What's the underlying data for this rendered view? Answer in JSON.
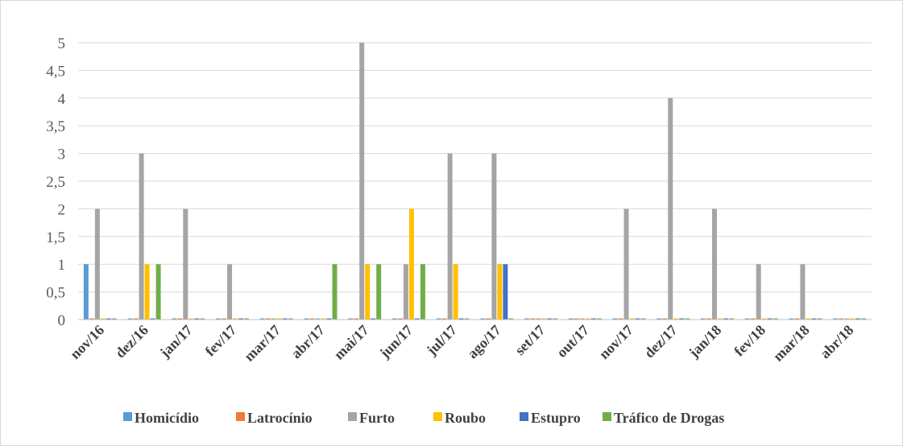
{
  "chart_data": {
    "type": "bar",
    "title": "",
    "xlabel": "",
    "ylabel": "",
    "ylim": [
      0,
      5
    ],
    "yticks": [
      "0",
      "0,5",
      "1",
      "1,5",
      "2",
      "2,5",
      "3",
      "3,5",
      "4",
      "4,5",
      "5"
    ],
    "grid": true,
    "legend_position": "bottom",
    "categories": [
      "nov/16",
      "dez/16",
      "jan/17",
      "fev/17",
      "mar/17",
      "abr/17",
      "mai/17",
      "jun/17",
      "jul/17",
      "ago/17",
      "set/17",
      "out/17",
      "nov/17",
      "dez/17",
      "jan/18",
      "fev/18",
      "mar/18",
      "abr/18"
    ],
    "series": [
      {
        "name": "Homicídio",
        "color": "#5b9bd5",
        "values": [
          1,
          0,
          0,
          0,
          0,
          0,
          0,
          0,
          0,
          0,
          0,
          0,
          0,
          0,
          0,
          0,
          0,
          0
        ]
      },
      {
        "name": "Latrocínio",
        "color": "#ed7d31",
        "values": [
          0,
          0,
          0,
          0,
          0,
          0,
          0,
          0,
          0,
          0,
          0,
          0,
          0,
          0,
          0,
          0,
          0,
          0
        ]
      },
      {
        "name": "Furto",
        "color": "#a5a5a5",
        "values": [
          2,
          3,
          2,
          1,
          0,
          0,
          5,
          1,
          3,
          3,
          0,
          0,
          2,
          4,
          2,
          1,
          1,
          0
        ]
      },
      {
        "name": "Roubo",
        "color": "#ffc000",
        "values": [
          0,
          1,
          0,
          0,
          0,
          0,
          1,
          2,
          1,
          1,
          0,
          0,
          0,
          0,
          0,
          0,
          0,
          0
        ]
      },
      {
        "name": "Estupro",
        "color": "#4472c4",
        "values": [
          0,
          0,
          0,
          0,
          0,
          0,
          0,
          0,
          0,
          1,
          0,
          0,
          0,
          0,
          0,
          0,
          0,
          0
        ]
      },
      {
        "name": "Tráfico de Drogas",
        "color": "#70ad47",
        "values": [
          0,
          1,
          0,
          0,
          0,
          1,
          1,
          1,
          0,
          0,
          0,
          0,
          0,
          0,
          0,
          0,
          0,
          0
        ]
      }
    ]
  }
}
